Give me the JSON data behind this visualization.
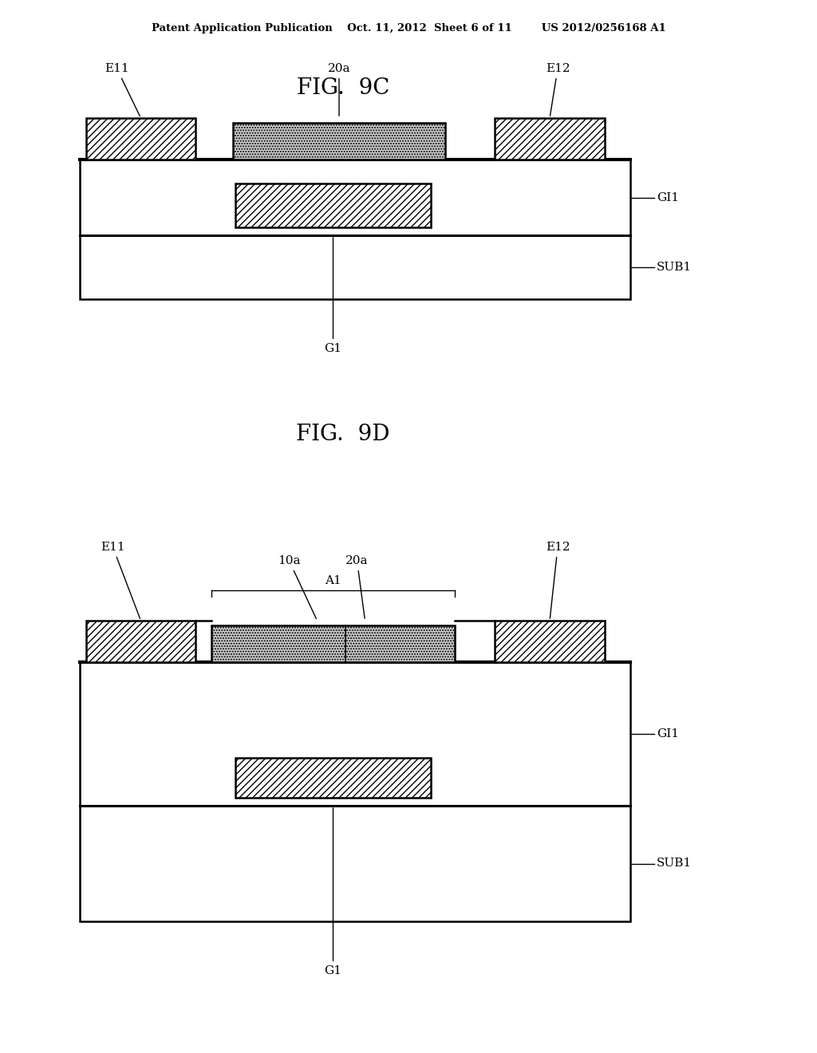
{
  "bg_color": "#ffffff",
  "header": "Patent Application Publication    Oct. 11, 2012  Sheet 6 of 11        US 2012/0256168 A1",
  "fig9c_title": "FIG.  9C",
  "fig9d_title": "FIG.  9D",
  "lw_border": 1.8,
  "lw_divider": 2.2,
  "lw_label": 1.0,
  "hatch_diag": "////",
  "hatch_dot": ".....",
  "fc_white": "#ffffff",
  "fc_gray": "#cccccc",
  "ec": "#000000"
}
